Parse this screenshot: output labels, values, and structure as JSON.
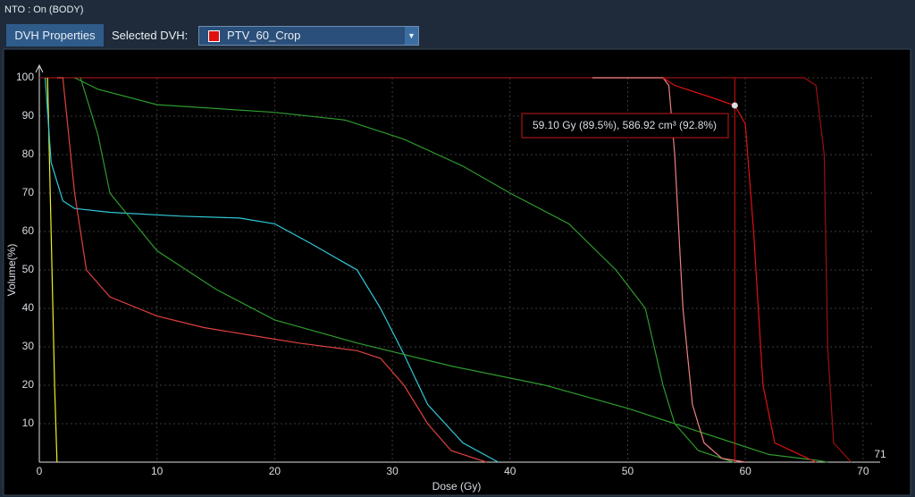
{
  "header": {
    "status": "NTO : On (BODY)"
  },
  "toolbar": {
    "button": "DVH Properties",
    "label": "Selected DVH:",
    "selected": "PTV_60_Crop",
    "selected_color": "#e01010"
  },
  "chart_data": {
    "type": "line",
    "x_label": "Dose (Gy)",
    "y_label": "Volume(%)",
    "xlim": [
      0,
      71
    ],
    "ylim": [
      0,
      100
    ],
    "xticks": [
      0,
      10,
      20,
      30,
      40,
      50,
      60,
      70
    ],
    "yticks": [
      10,
      20,
      30,
      40,
      50,
      60,
      70,
      80,
      90,
      100
    ],
    "grid": true,
    "series": [
      {
        "color": "#9c1010",
        "x": [
          0,
          65,
          66,
          66.7,
          67,
          67.5,
          69
        ],
        "values": [
          100,
          100,
          98,
          80,
          30,
          5,
          0
        ]
      },
      {
        "color": "#f0f020",
        "x": [
          0.7,
          1.0,
          1.3,
          1.5
        ],
        "values": [
          100,
          60,
          20,
          0
        ]
      },
      {
        "color": "#30c8d8",
        "x": [
          0.5,
          1,
          2,
          3,
          6,
          12,
          17,
          20,
          23,
          27,
          29,
          31,
          33,
          36,
          39
        ],
        "values": [
          100,
          78,
          68,
          66,
          65,
          64,
          63.5,
          62,
          57,
          50,
          40,
          28,
          15,
          5,
          0
        ]
      },
      {
        "color": "#e04040",
        "x": [
          1.5,
          2,
          3,
          4,
          6,
          10,
          14,
          18,
          22,
          27,
          29,
          31,
          33,
          35,
          38
        ],
        "values": [
          100,
          100,
          70,
          50,
          43,
          38,
          35,
          33,
          31,
          29,
          27,
          20,
          10,
          3,
          0
        ]
      },
      {
        "color": "#2e9a2e",
        "x": [
          3.5,
          5,
          6,
          10,
          15,
          20,
          27,
          35,
          43,
          50,
          55,
          59,
          62,
          66,
          67
        ],
        "values": [
          100,
          85,
          70,
          55,
          45,
          37,
          31,
          25,
          20,
          14,
          9,
          5,
          2,
          0.5,
          0
        ]
      },
      {
        "color": "#2e9a2e",
        "x": [
          3,
          5,
          10,
          20,
          26,
          31,
          36,
          40,
          45,
          49,
          51.5,
          53,
          54,
          56,
          59
        ],
        "values": [
          100,
          97,
          93,
          91,
          89,
          84,
          77,
          70,
          62,
          50,
          40,
          20,
          10,
          3,
          0
        ]
      },
      {
        "color": "#f08080",
        "x": [
          47,
          53,
          53.5,
          54,
          54.7,
          55.5,
          56.5,
          58,
          60
        ],
        "values": [
          100,
          100,
          98,
          80,
          40,
          15,
          5,
          1,
          0
        ]
      },
      {
        "color": "#e01010",
        "x": [
          53,
          54,
          57,
          59.1,
          60,
          60.7,
          61.5,
          62.5,
          66
        ],
        "values": [
          100,
          98,
          95,
          92.8,
          88,
          60,
          20,
          5,
          0
        ]
      }
    ],
    "cursor": {
      "x": 59.1,
      "y": 92.8,
      "color": "#e01010"
    },
    "annotation": "59.10 Gy (89.5%), 586.92 cm³ (92.8%)"
  }
}
